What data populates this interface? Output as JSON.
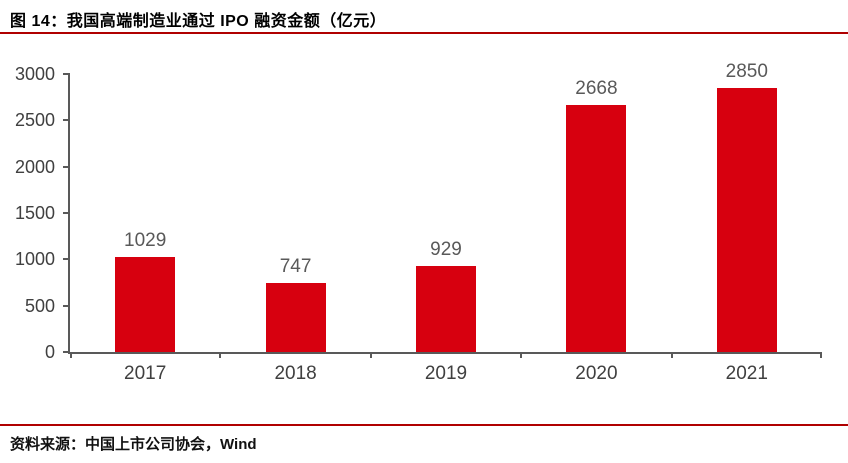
{
  "header": {
    "title": "图 14：我国高端制造业通过 IPO 融资金额（亿元）"
  },
  "footer": {
    "source": "资料来源：中国上市公司协会，Wind"
  },
  "colors": {
    "bar": "#d7000f",
    "rule": "#b00000",
    "axis": "#595959",
    "tick_label": "#404040",
    "data_label": "#595959",
    "text": "#000000"
  },
  "chart_data": {
    "type": "bar",
    "title": "图 14：我国高端制造业通过 IPO 融资金额（亿元）",
    "unit": "亿元",
    "categories": [
      "2017",
      "2018",
      "2019",
      "2020",
      "2021"
    ],
    "values": [
      1029,
      747,
      929,
      2668,
      2850
    ],
    "data_labels": [
      "1029",
      "747",
      "929",
      "2668",
      "2850"
    ],
    "xlabel": "",
    "ylabel": "",
    "ylim": [
      0,
      3000
    ],
    "yticks": [
      0,
      500,
      1000,
      1500,
      2000,
      2500,
      3000
    ],
    "grid": false,
    "legend": "none",
    "bar_color": "#d7000f",
    "source": "资料来源：中国上市公司协会，Wind"
  }
}
